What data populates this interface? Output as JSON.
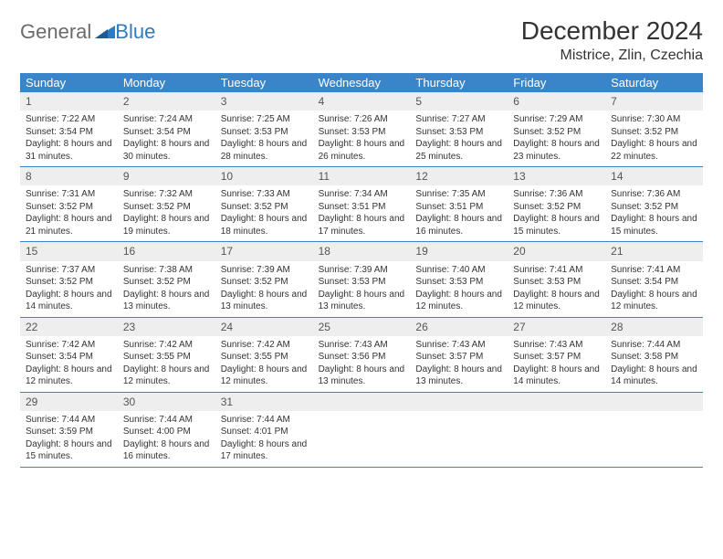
{
  "logo": {
    "general": "General",
    "blue": "Blue"
  },
  "header": {
    "month_title": "December 2024",
    "location": "Mistrice, Zlin, Czechia"
  },
  "colors": {
    "header_bg": "#3a85c9",
    "header_text": "#ffffff",
    "daynum_bg": "#eeeeee",
    "border": "#3a85c9",
    "logo_gray": "#6b6b6b",
    "logo_blue": "#2f7ac0"
  },
  "day_names": [
    "Sunday",
    "Monday",
    "Tuesday",
    "Wednesday",
    "Thursday",
    "Friday",
    "Saturday"
  ],
  "weeks": [
    [
      {
        "n": "1",
        "sr": "7:22 AM",
        "ss": "3:54 PM",
        "dl": "8 hours and 31 minutes."
      },
      {
        "n": "2",
        "sr": "7:24 AM",
        "ss": "3:54 PM",
        "dl": "8 hours and 30 minutes."
      },
      {
        "n": "3",
        "sr": "7:25 AM",
        "ss": "3:53 PM",
        "dl": "8 hours and 28 minutes."
      },
      {
        "n": "4",
        "sr": "7:26 AM",
        "ss": "3:53 PM",
        "dl": "8 hours and 26 minutes."
      },
      {
        "n": "5",
        "sr": "7:27 AM",
        "ss": "3:53 PM",
        "dl": "8 hours and 25 minutes."
      },
      {
        "n": "6",
        "sr": "7:29 AM",
        "ss": "3:52 PM",
        "dl": "8 hours and 23 minutes."
      },
      {
        "n": "7",
        "sr": "7:30 AM",
        "ss": "3:52 PM",
        "dl": "8 hours and 22 minutes."
      }
    ],
    [
      {
        "n": "8",
        "sr": "7:31 AM",
        "ss": "3:52 PM",
        "dl": "8 hours and 21 minutes."
      },
      {
        "n": "9",
        "sr": "7:32 AM",
        "ss": "3:52 PM",
        "dl": "8 hours and 19 minutes."
      },
      {
        "n": "10",
        "sr": "7:33 AM",
        "ss": "3:52 PM",
        "dl": "8 hours and 18 minutes."
      },
      {
        "n": "11",
        "sr": "7:34 AM",
        "ss": "3:51 PM",
        "dl": "8 hours and 17 minutes."
      },
      {
        "n": "12",
        "sr": "7:35 AM",
        "ss": "3:51 PM",
        "dl": "8 hours and 16 minutes."
      },
      {
        "n": "13",
        "sr": "7:36 AM",
        "ss": "3:52 PM",
        "dl": "8 hours and 15 minutes."
      },
      {
        "n": "14",
        "sr": "7:36 AM",
        "ss": "3:52 PM",
        "dl": "8 hours and 15 minutes."
      }
    ],
    [
      {
        "n": "15",
        "sr": "7:37 AM",
        "ss": "3:52 PM",
        "dl": "8 hours and 14 minutes."
      },
      {
        "n": "16",
        "sr": "7:38 AM",
        "ss": "3:52 PM",
        "dl": "8 hours and 13 minutes."
      },
      {
        "n": "17",
        "sr": "7:39 AM",
        "ss": "3:52 PM",
        "dl": "8 hours and 13 minutes."
      },
      {
        "n": "18",
        "sr": "7:39 AM",
        "ss": "3:53 PM",
        "dl": "8 hours and 13 minutes."
      },
      {
        "n": "19",
        "sr": "7:40 AM",
        "ss": "3:53 PM",
        "dl": "8 hours and 12 minutes."
      },
      {
        "n": "20",
        "sr": "7:41 AM",
        "ss": "3:53 PM",
        "dl": "8 hours and 12 minutes."
      },
      {
        "n": "21",
        "sr": "7:41 AM",
        "ss": "3:54 PM",
        "dl": "8 hours and 12 minutes."
      }
    ],
    [
      {
        "n": "22",
        "sr": "7:42 AM",
        "ss": "3:54 PM",
        "dl": "8 hours and 12 minutes."
      },
      {
        "n": "23",
        "sr": "7:42 AM",
        "ss": "3:55 PM",
        "dl": "8 hours and 12 minutes."
      },
      {
        "n": "24",
        "sr": "7:42 AM",
        "ss": "3:55 PM",
        "dl": "8 hours and 12 minutes."
      },
      {
        "n": "25",
        "sr": "7:43 AM",
        "ss": "3:56 PM",
        "dl": "8 hours and 13 minutes."
      },
      {
        "n": "26",
        "sr": "7:43 AM",
        "ss": "3:57 PM",
        "dl": "8 hours and 13 minutes."
      },
      {
        "n": "27",
        "sr": "7:43 AM",
        "ss": "3:57 PM",
        "dl": "8 hours and 14 minutes."
      },
      {
        "n": "28",
        "sr": "7:44 AM",
        "ss": "3:58 PM",
        "dl": "8 hours and 14 minutes."
      }
    ],
    [
      {
        "n": "29",
        "sr": "7:44 AM",
        "ss": "3:59 PM",
        "dl": "8 hours and 15 minutes."
      },
      {
        "n": "30",
        "sr": "7:44 AM",
        "ss": "4:00 PM",
        "dl": "8 hours and 16 minutes."
      },
      {
        "n": "31",
        "sr": "7:44 AM",
        "ss": "4:01 PM",
        "dl": "8 hours and 17 minutes."
      },
      null,
      null,
      null,
      null
    ]
  ],
  "labels": {
    "sunrise": "Sunrise:",
    "sunset": "Sunset:",
    "daylight": "Daylight:"
  }
}
